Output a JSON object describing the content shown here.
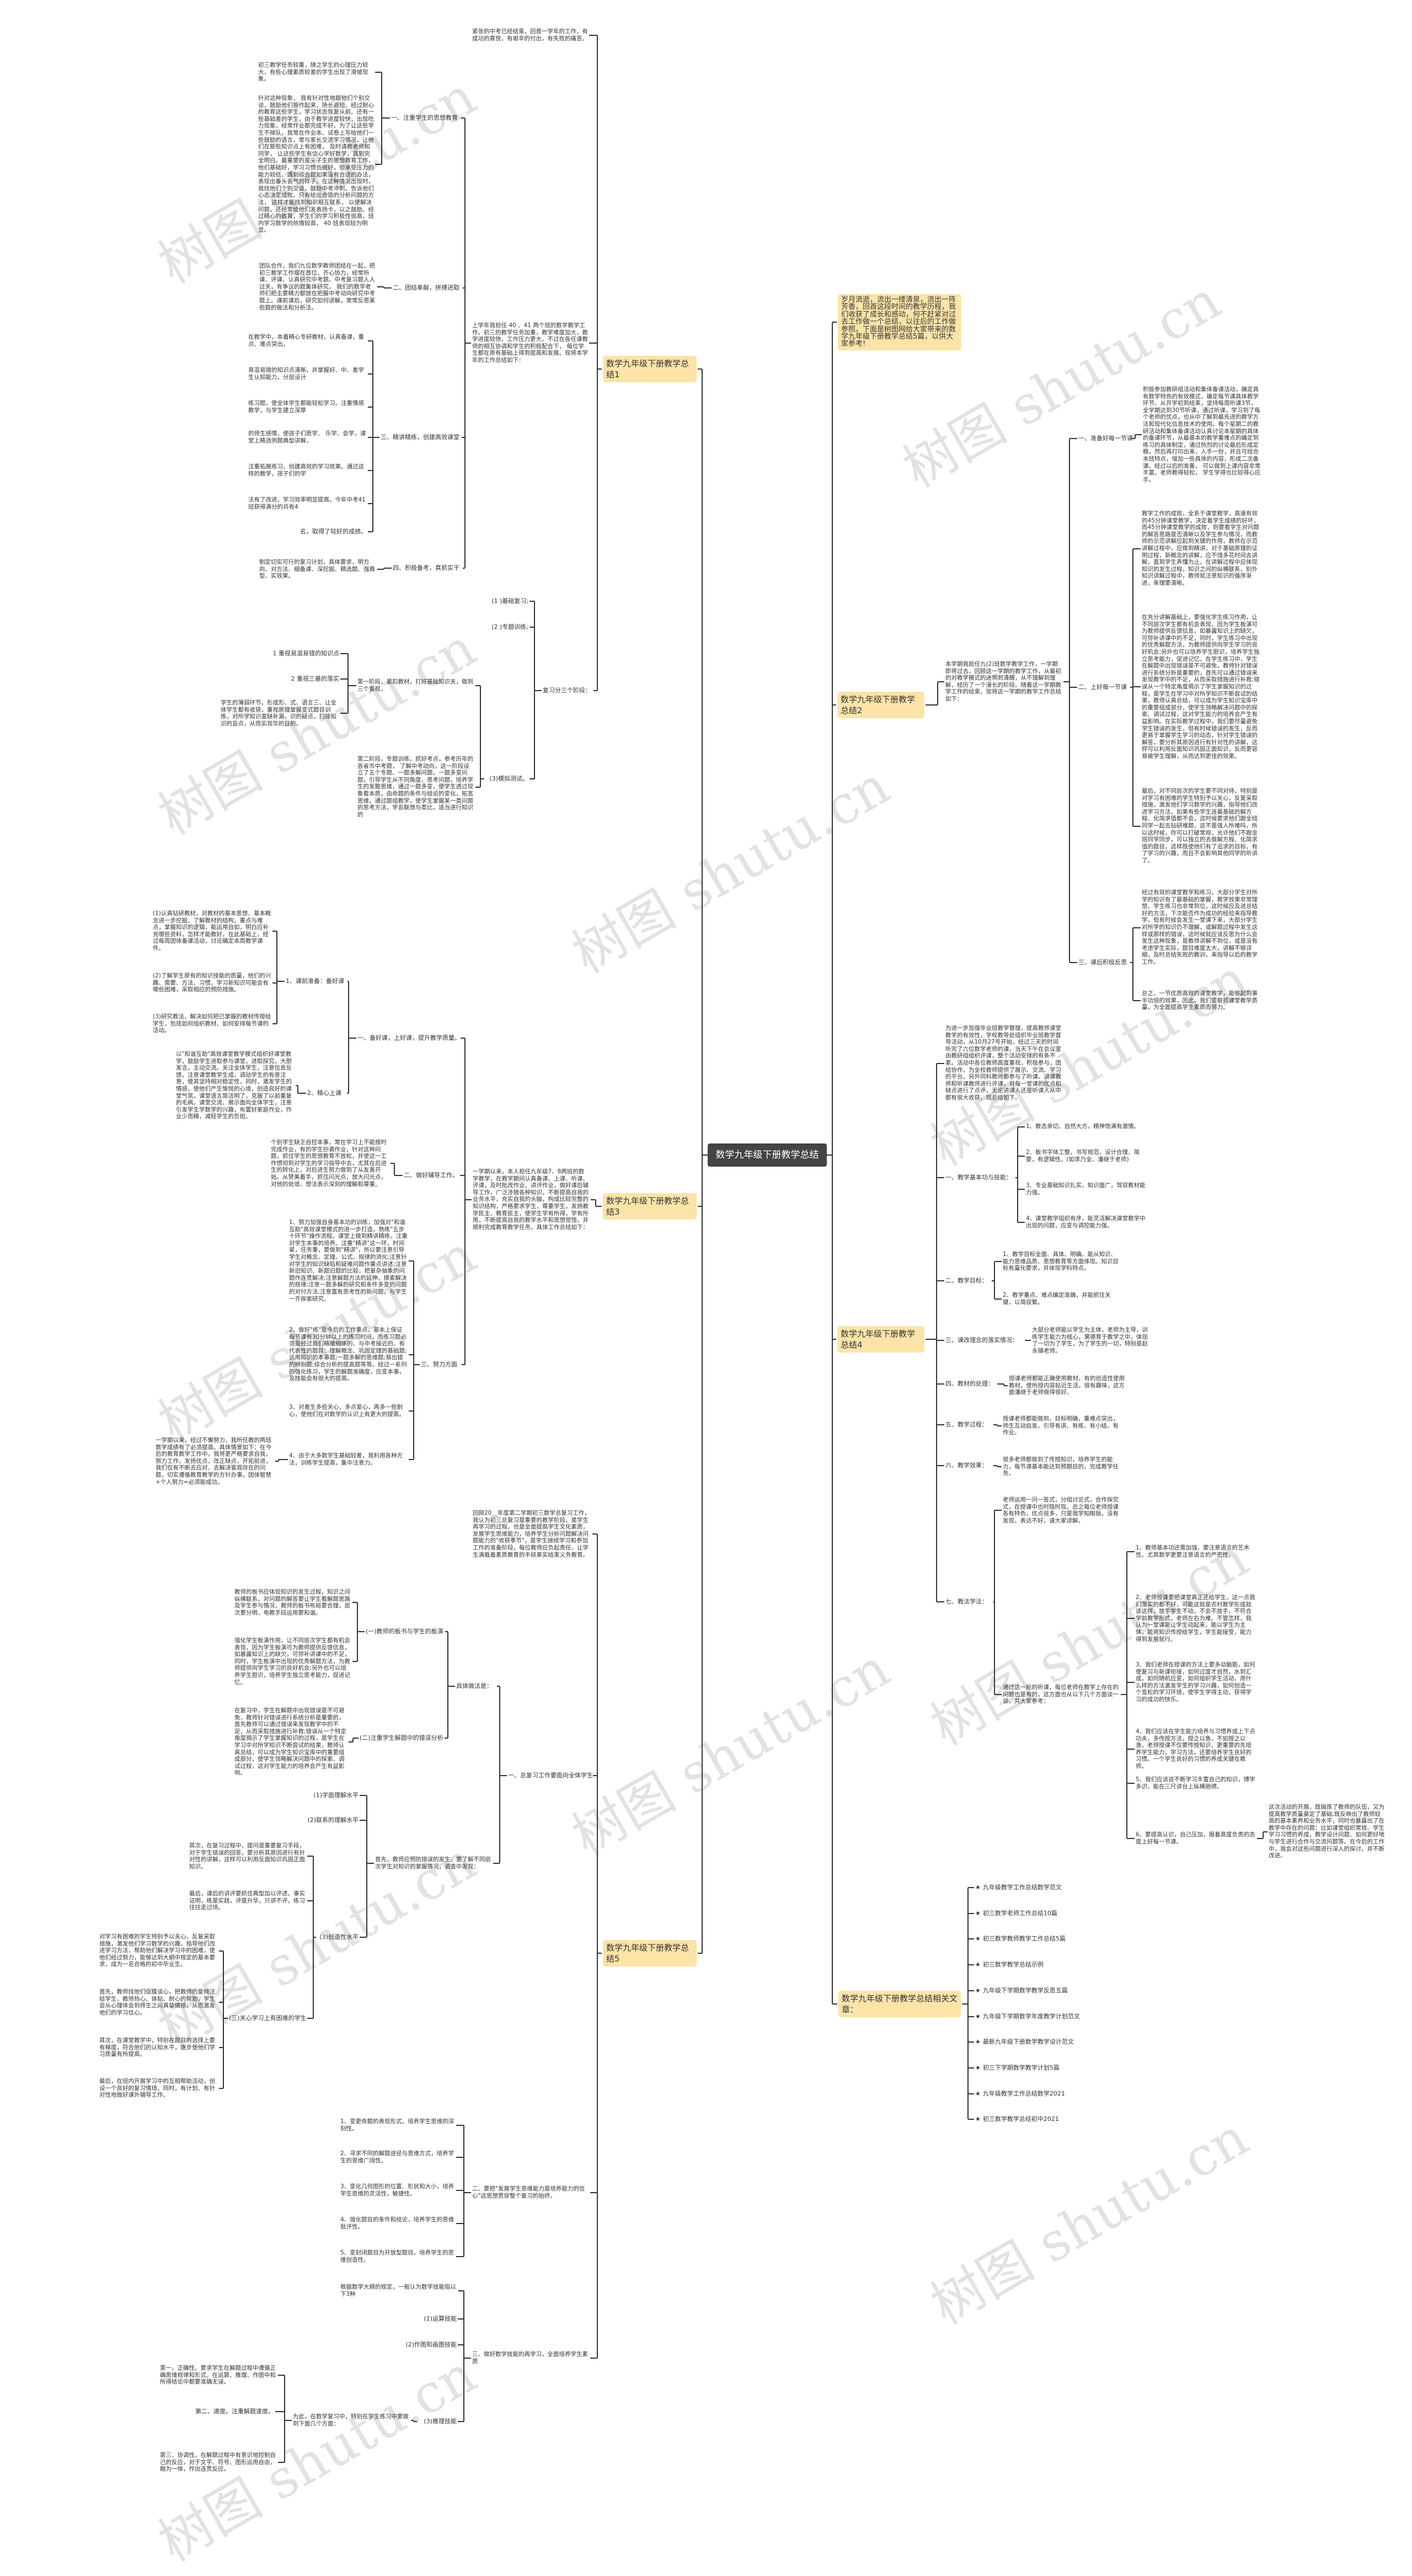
{
  "watermark": "树图 shutu.cn",
  "colors": {
    "node": "#fce4a8",
    "center": "#444444",
    "line": "#333333"
  },
  "center": "数学九年级下册教学总结",
  "intro": "岁月流逝，流出一缕清泉，流出一阵芳香，回首这段时间的教学历程，我们收获了成长和感动，何不赶紧对过去工作做一个总结，以往后的工作做参照。下面是树图网给大家带来的数学九年级下册教学总结5篇，以供大家参考!",
  "b1": {
    "title": "数学九年级下册教学总结1",
    "intro": "紧张的中考已经结束，回首一学年的工作，有成功的喜悦，有艰辛的付出，有失败的痛苦。",
    "p1": {
      "text": "上学年我担任 40 、41 两个班的数学教学工作。初三的教学任务加重，教学难度加大，教学进度较快，工作压力更大，不过在各任课教师的相互协调和学生的积极配合下， 每位学生都在原有基础上得到提高和发展。现将本学年的工作总结如下：",
      "s1": {
        "label": "一、注重学生的思想教育",
        "items": [
          "初三教学任务较重，随之学生的心理压力较大，有些心理素质较差的学生出现了滑坡现象。",
          "针对这种现象， 我有针对性地跟他们个别交谈，鼓励他们振作起来，扬长避短。经过耐心的教育这些学生，学习状态恢复从前。还有一些基础差的学生，由于教学进度较快，出现吃力现象，经常作业都完成不好。为了让这些学生不掉队，我常在作业本、试卷上写给他们一些鼓励的语言，常与家长交流学习情况，让他们在那些知识点上有困难， 及时请教老师和同学， 让这些学生有信心学好数学，直到完全明白。最重要的是尖子生的思想教育工作，他们基础好，学习习惯也很好，但承受压力的能力较低，遇到综合题如果没有合适的办法，表现出垂头丧气的样子。在这种情况出现时，我找他们个别交谈，鼓励中考冲刺，告诉他们心态决定成败。只有给出合适的分析问题的方法， 这样才能找到知识相互联系， 以便解决问题，还经常给他们发表扬卡，以之鼓励。经过精心的教育，学生们的学习积极性很高，班内学习数学的热情较高， 40 班表现较为明显。"
        ]
      },
      "s2": {
        "label": "二、团结奉献，拼搏进取",
        "items": [
          "团队合作，我们九位数学教师团结在一起，把初三教学工作摆在首位，齐心协力，经常听课、评课、认真研究中考题。中考复习题人人过关，有争议的题集体研究， 我们的数学老师们把主要精力都放在把握中考动向研究中考题上。课前课后，研究如何讲解，常常反思某些题的做法和分析法。"
        ]
      },
      "s3": {
        "label": "三、精讲精练，创建高效课堂",
        "items": [
          "在教学中，本着精心专研教材，认真备课，重点、难点突出，",
          "易混易错的知识点清晰，并掌握好、中、差学生认知能力，分层设计",
          "练习题，使全体学生都能轻松学习。注重情感教学，与学生建立深厚",
          "的师生感情，使孩子们愿学、 乐学、会学，课堂上精选例题典型讲解，",
          "注重拓展练习，创建高效的学习效果。通过这样的教学，孩子们的学",
          "法有了改进，学习效率明显提高，今年中考41 班获得满分的共有4",
          "名，取得了较好的成绩。"
        ]
      },
      "s4": {
        "label": "四、积极备考，真抓实干",
        "items": [
          "制定切实可行的复习计划，具体要求，明方向、对方法、细备课、深挖掘、精选题、强典型、实效果。"
        ]
      }
    },
    "review": {
      "label": "复习分三个阶段：",
      "items": [
        "(1 )基础复习;",
        "(2 )专题训练;"
      ],
      "s3": {
        "label": "(3)模拟测试。",
        "stage1": {
          "text": "第一阶段，紧扣教材，打好基础知识关，做到三个重视，",
          "items": [
            "1 重视易混易错的知识点",
            "2 重视三基的落实",
            "学生的薄弱环节，形成形、式、语言三、让全体学生都有收获，重视原理掌握变式题目训练，对所学知识查缺补漏，识的疑点，扫除知识的盲点，从而实现华的目的。"
          ]
        },
        "stage2": "第二阶段，专题训练，抓好考点，参考历年的各省市中考题， 了解中考动向，这一阶段设立了五个专题。一题多解问题，一题多变问题，引导学生从不同角度，思考问题，培养学生的发散思维，通过一题多变，使学生透过现象看本质，由命题的条件与结论的变化，拓宽思维，通过题组教学，使学生掌握某一类问题的思考方法，学会联想与类比，适当进行知识的"
      }
    }
  },
  "b2": {
    "title": "数学九年级下册教学总结2",
    "intro": "本学期我担任九(2)班数学教学工作，一学期即将过去，回顾这一学期的教学工作，从最初的对教学模式的迷惘到清醒，从不理解到理解，经历了一个漫长的阶段。随着这一学期教学工作的结束，现将这一学期的教学工作总结如下：",
    "s1": {
      "label": "一、准备好每一节课",
      "items": [
        "积极参加教研组活动和集体备课活动，确定具有数学特色的有效模式，确定每节课具体教学环节。从开学初到结束，坚持每周听课3节，全学期达到30节听课，通过听课，学习到了每个老师的优点，也从中了解到最先进的教学方法和现代化信息技术的使用。每个星期二的教研活动和集体备课活动认真讨论本星期的具体的备课环节，从最基本的教学重难点的确定到练习的具体制定，通过热烈的讨论最后形成定稿，然后再打印出来，人手一份，并且可结合本班特点，增加一些具体的内容，形成二次备课。经过以后的准备， 可以做到上课内容非常丰富，老师教得轻松， 学生学得也比较得心应手。"
      ]
    },
    "s2": {
      "label": "二、上好每一节课",
      "items": [
        "教学工作的成败，全系于课堂教学，高速有效的45分钟课堂教学，决定着学生成绩的好坏，而45分钟课堂教学的成败，则要看学生对问题的解答思路是否清晰以及学生参与情况，而教师的示范讲解应起到关键的作用，教师在示范讲解过程中，应做到精讲，对于基础原理的证明过程，新概念的讲解，应不惜多花时间去讲解，直到学生弄懂为止，在讲解过程中应体现知识的发生过程，知识之间的纵横联系，别外知识讲解过程中，教师就注意知识的循序渐进，条理要清晰。",
        "在充分讲解基础上，要强化学生练习作用，让不同层次学生都有机会表现，因为学生板演可为教师提供反馈信息，如暴露知识上的缺欠，可弥补讲课中的不足，同时，学生练习中出现的优秀解题方法，为教师提供向学生学习的良好机会;另外也可以培养学生胆识，培养学生独立思考能力，促进记忆。在学生练习中，学生在解题中出现错误是不可避免。教师针对错误进行系统分析是重要的，首先可以通过错误来发现教学中的不足，从而采取措施进行补救;错误从一个特定角度揭示了学生掌握知识的过程，是学生在学习中对所学知识不断尝试的结果，教师认真总结，可以成为学生知识宝库中的重要组成部分，使学生领略解决问题中的探索、调试过程，这对学生能力的培养会产生有益影响。在实际教学过程中，我们要尽量避免学生错误的发生，但有时候错误的发生，反而更易于掌握学生学习的动态，针对学生错误的解答，要分析其原因进行有针对性的讲解，这样可以利用反面知识巩固正面知识，反而更容易被学生理解，从而达到更佳的效果。",
        "最后，对不同层次的学生要不同对待，特别是对学习有困难的学生特别予以关心，反复采取措施，激发他们学习数学的兴趣，指导他们改进学习方法，如果有些学生连最基础的解方程、化简求值都不会，这时候要求他们跟全班同学一起去钻研难题，这不是强人所难吗，所以这时候，你可以打破常规，允许他们不跟全班同学同步，可以独立的去做解方程、化简求值的题目，这样既使他们有了追求的目标，有了学习的兴趣，而且不会影响其他同学的听讲了。"
      ]
    },
    "s3": {
      "label": "三、课后积极反思",
      "items": [
        "经过有效的课堂教学和练习，大部分学生对所学的知识有了最基础的掌握，教学效果非常理想，学生练习也非常到位，这时候应及进总结好的方法，下次能否作为成功的经验来指导教学。但有时候会发生一堂课下来，大部分学生对所学的知识仍不理解，或解题过程中发生这样或那样的错误，这时候就应该反思为什么会发生这种现象，是教师讲解不到位，或是没有考虑学生实际，题目难度太大，讲解不够详细，及时总结失败的教训，来指导以后的教学工作。",
        "总之，一节优质高效的课堂教学，能够起到事半功倍的效果，因此，我们要狠抓课堂教学质量，为全面提高学生素质而努力。"
      ]
    }
  },
  "b3": {
    "title": "数学九年级下册教学总结3",
    "intro": "一学期以来，本人担任九年级7、8两班的数学教学，在教学期间认真备课、上课、听课、评课，及时批改作业、讲评作业，做好课后辅导工作，广泛涉猎各种知识，不断提高自我的业务水平，充实自我的头脑，构成比较完整的知识结构，严格要求学生，尊重学生，发扬教学民主，教育民主，使学生学有所得，学有所用，不断提高自我的教学水平和思想觉悟，并顺利完成教育教学任务。具体工作总结如下：",
    "s1": {
      "label": "一、备好课，上好课，提升教学质量。",
      "c1": {
        "label": "1、课前准备：备好课",
        "items": [
          "(1)认真钻研教材，对教材的基本思想、基本概念进一步挖掘，了解教材的结构，重点与难点，掌握知识的逻辑，能运用自如，明白应补充哪些资料，怎样才能教好，在此基础上，经过每周团体备课活动，讨论确定本周教学课件。",
          "(2)了解学生原有的知识技能的质量，他们的兴趣、需要、方法、习惯，学习新知识可能会有哪些困难，采取相应的预防措施。",
          "(3)研究教法，解决如何把已掌握的教材传授给学生，包括如何组织教材、如何安排每节课的活动。"
        ]
      },
      "c2": {
        "label": "2、精心上课",
        "items": [
          "以\"和谐互助\"高效课堂教学模式组织好课堂教学，鼓励学生进取参与课堂，进取探究，大胆发言，主动交流。关注全体学生，注意信息反馈，注意课堂教学生成，调动学生的有意注意，使其坚持相对稳定性，同时，激发学生的情感，使他们产生愉悦的心境，创造良好的课堂气氛，课堂语言简洁明了，克服了以前重复的毛病，课堂交流、展示面向全体学生，注意引发学生学数学的兴趣，布置好家庭作业，作业少而精，减轻学生的负担。"
        ]
      }
    },
    "s2": {
      "label": "二、做好辅导工作。",
      "items": [
        "个别学生缺乏自控本事，常在学习上不能按时完成作业，有的学生抄袭作业，针对这种问题，抓住学生的思想教育不放松，并使这一工作惯彻到对学生的学习指导中去，尤其在后进生的转化上，对后进生努力做到了从友善开始。从赞美着手，抓住闪光点，放大闪光点，对他的处境、想法表示深刻的理解和尊重。"
      ]
    },
    "s3": {
      "label": "三、努力方面",
      "items": [
        "1、努力加强自身基本功的训练，加强对\"和谐互助\"高效课堂模式的进一步打造，熟练\"五步十环节\"操作流程。课堂上做到精讲精练，注重对学生本事的培养。注重\"精讲\"这一环，时间紧，任务重，要做到\"精讲\"，所以要注意引导学生对概念、定理、公式、规律的消化;注意针对学生的知识缺陷和疑难问题作重点讲述;注意新旧知识、新题旧题的比较，把复杂抽象的问题作连贯解决;注意解题方法的延伸，摸索解决的规律;注意一题多解的研究和条件多变的问题的对付方法;注意富有思考性的新问题，与学生一齐探索研究。",
        "2、做好\"练\"是今后的工作重点，基本上保证每节课有30分钟以上的练习时间，而练习题必须是经过我们精雕细琢的、与中考接近的、有代表性的题目：理解概念、巩固定理的基础题;运用知识的本事题;一题多解的思维题;易出错的辨别题;综合分析的提高题等等。经过一系列的强化练习，学生的解题准确度，应变本事，及技能会有很大的提高。",
        "3、对差生多些关心，多点爱心，再多一些耐心，使他们在对数学的认识上有更大的提高。",
        "4、由于大多数学生基础较差，我利用各种方法，训练学生提高，集中注意力。"
      ],
      "final": "一学期以来，经过不懈努力，我所任教的两班数学成绩有了必须提高。具体情景如下：在今后的教育教学工作中，我将更严格要求自我，努力工作，发扬优点，改正缺点，开拓前进，我们仅有不断去应对、去解决客观存在的问题，切实遵循教育教学的方针办事，团体智慧+个人努力=必须能成功。"
    }
  },
  "b4": {
    "title": "数学九年级下册教学总结4",
    "intro": "为进一步加强毕业班教学管理，提高教师课堂教学的有效性，学校教导处组织毕业班教学督导活动，从10月27号开始，经过三天的时间听完了六位数学老师的课，当天下午在会议室由教研组组织评课，整个活动安排的有条不紊。活动中各位教师高度重视，积极参与，团结协作，为全校教师提供了展示、交流、学习的平台。另外同科教师都参与了听课。讲课教师和听课教师进行评课，对每一堂课的优点和缺点进行了点评，无论讲课人还是听课人从中都有很大收获，现总结如下。",
    "s1": {
      "label": "一、教学基本功与技能：",
      "items": [
        "1、教态亲切、自然大方，精神饱满有激情。",
        "2、板书字体工整，书写规范，设计合理、简要，有逻辑性。(如李乃全、潘继于老师)",
        "3、专业基础知识扎实，知识面广，驾驭教材能力强。",
        "4、课堂教学组织有序，能灵活解决课堂教学中出现的问题，应变与调控能力强。"
      ]
    },
    "s2": {
      "label": "二、教学目标：",
      "items": [
        "1、教学目标全面、具体、明确。能从知识、能力思维品质、思想教育等方面体现。知识目标有量化要求，并体现学科特点。",
        "2、教学重点、难点确定准确，并能抓住关键，以简驭繁。"
      ]
    },
    "s3": {
      "label": "三、课改理念的落实情况：",
      "text": "大部分老师能以学生为主体，老师为主导，训练学生能力为核心，寓德育于教学之中，体现了一切为了学生，为了学生的一切，特别是赵永镇老师。"
    },
    "s4": {
      "label": "四、教材的处理：",
      "text": "授课老师都能正确使用教材，有的创造性使用教材，使所授内容贴近生活，很有趣味，这方面潘继于老师做得很好。"
    },
    "s5": {
      "label": "五、教学过程：",
      "text": "授课老师都能做到，目标明确，重难点突出，师生互动启发，引导有讲、有练、有小结、有作业。"
    },
    "s6": {
      "label": "六、教学效果：",
      "text": "很多老师都做到了传授知识，培养学生的能力，每节课基本能达到预期目的，完成教学任务。"
    },
    "s7": {
      "label": "七、教法学法：",
      "text1": "老师运用一问一答式，分组讨论式，合作探究式，在授课中也时隐时现。总之每位老师授课各有特色，优点很多，只是我学知眼拙，没有发现，表达不好，请大家谅解。",
      "text2": "通过这一轮的听课，每位老师在教学上存在的问题也是有的，这方面也从以下几个方面谈一谈，共大家参考：",
      "items": [
        "1、教师基本功还需加强，要注意语言的艺术性。尤其数学更要注意语言的严密性。",
        "2、老师授课要把课堂真正还给学生，这一点我们落实的都不好，可能这就是农村教学形成就该这样，放手学生不动，不会不放手，不符合学前教学形式，老师左右为难。不管怎样，我认为一堂课能让学生动起来，能以学生为主体，能将知识传授给学生，学生能接受，能力得到发展就行。",
        "3、我们老师在授课的方法上要多动脑筋，如何使复习与新课衔接，如何过度才自然，水到汇成，如何随机应变，如何组织学生活动，用什么样的方法激发学生的学习兴趣，如何创造一个宽松的学习环境，使学生学得主动，获得学习的成功的快乐。",
        "4、我们应该在学生能力培养与习惯养成上下点功夫，多传授方法，授之以鱼，不如授之以渔，老师授课不仅要传授知识，更重要的先培养学生能力，学习方法，还要培养学生良好的习惯。一个学生良好的习惯的养成关键在教师。",
        "5、我们应该说不断学习丰富自己的知识，博学多识，能在三尺讲台上纵横驰骋。",
        "6、要提高认识，自己压加，报着高度负责的态度上好每一节课。"
      ],
      "final": "这次活动的开展，既锻炼了教师的队伍，又为提高教学质量奠定了基础;既反映出了教师较高的基本素养和业务水平，同时也暴露出了在教学中存在的问题：比如课堂组织常规、学生学习习惯的养成，教学设计问题、如何更好地与学生进行合作与交流问题等。在今后的工作中，我会对这些问题进行深入的探讨，并不断改进。"
    }
  },
  "b5": {
    "title": "数学九年级下册教学总结5",
    "intro": "回顾20__年度第二学期初三数学总复习工作，我认为初三总复习是重要的教学阶段，是学生再学习的过程，也是全面提高学生文化素质，发展学生思维能力，培养学生分析问题解决问题能力的\"收获季节\"，是学生继续学习和参加工作的准备阶段，每位教师应负起责任，让学生满载着素质教育的丰硕果实结束义务教育。",
    "s1": {
      "label": "一、总复习工作要面向全体学生",
      "how": {
        "label": "具体做法是：",
        "a": {
          "label": "(一)教师的板书与学生的板演",
          "items": [
            "教师的板书应体现知识的发生过程，知识之间纵横联系，对问题的解答要让学生看解题思路及学生参与情况，教师的板书布局要合理，层次要分明，电教手段运用要和谐。",
            "强化学生板演作用，让不同层次学生都有机会表现，因为学生板演可为教师提供反馈信息，如暴露知识上的缺欠，可弥补讲课中的不足，同时，学生板演中出现的优秀解题方法，为教师提供向学生学习的良好机会;另外也可以培养学生胆识，培养学生独立思考能力，促进记忆。"
          ]
        },
        "b": {
          "label": "(二)注重学生解题中的错误分析",
          "text": "在复习中，学生在解题中出现错误是不可避免，教师针对错误进行系统分析是重要的，首先教师可以通过错误来发现教学中的不足，从而采取措施进行补救;错误从一个特定角度揭示了学生掌握知识的过程，是学生在学习中对所学知识不断尝试的结果，教师认真总结，可以成为学生知识宝库中的重要组成部分，使学生领略解决问题中的探索、调试过程，这对学生能力的培养会产生有益影响。"
        }
      },
      "first": {
        "text": "首先，教师应预防错误的发生，要了解不同层次学生对知识的掌握情况，调查中发现：",
        "items": [
          "(1)字面理解水平",
          "(2)联系的理解水平"
        ],
        "c3": {
          "label": "(3)创造性水平",
          "items": [
            "其次，在复习过程中，提问是重要复习手段，对于学生错误的回答，要分析其原因进行有针对性的讲解，这样可以利用反面知识巩固正面知识。",
            "最后，课后的讲评要抓住典型加以评述。事实证明，练是实践，评是升华，只讲不评，练习往往走过场。"
          ],
          "care": {
            "label": "(三)关心学习上有困难的学生",
            "items": [
              "对学习有困难的学生特别予以关心，反复采取措施，激发他们学习数学的兴趣，指导他们改进学习方法，帮助他们解决学习中的困难，使他们经过努力，能够达到大纲中规定的基本要求，成为一名合格的初中毕业生。",
              "首先，教师找他们促膝谈心，把教师的爱倾注给学生，教师热心、体贴、耐心的帮助，学生会从心理体会到师生之间真挚情感，从而激发他们的学习信心。",
              "其次，在课堂教学中，特别在题目的选择上要有梯度，符合他们的认知水平，逐步使他们学习质量有所提高。",
              "最后，在班内开展学习中的互相帮助活动，创设一个良好的复习情境，同时，有计划、有针对性地做好课外辅导工作。"
            ]
          }
        }
      }
    },
    "s2": {
      "label": "二、要把\"发展学生思维能力是培养能力的信心\"这思想贯穿整个复习的始终。",
      "items": [
        "1、变更命题的表现形式，培养学生思维的深刻性。",
        "2、寻求不同的解题途径与思维方式，培养学生的思维广阔性。",
        "3、变化几何图形的位置、形状和大小，培养学生思维的灵活性，敏捷性。",
        "4、强化题目的条件和结论，培养学生的思维批评性。",
        "5、变封闭题目为开放型题目，培养学生的思维创造性。"
      ]
    },
    "s3": {
      "label": "三、做好数学技能的再学习，全面培养学生素质",
      "intro": "根据数学大纲的规定，一般认为数学技能指以下3种",
      "items": [
        "(1)运算技能",
        "(2)作图和画图技能"
      ],
      "c3": {
        "label": "(3)推理技能",
        "text": "为此，在数学复习中，特别在学生练习中要做到下面几个方面：",
        "items": [
          "第一，正确性。要求学生在解题过程中遵循正确思维规律和形式，在运算、推理、作图中和所得结论中都要准确无误。",
          "第二、速度。注重解题速度。",
          "第三、协调性。在解题过程中有意识地控制自己的反应，对于文字、符号、图形运用自由，融为一体，作出连贯反应。"
        ]
      }
    }
  },
  "b6": {
    "title": "数学九年级下册教学总结相关文章：",
    "star": "★",
    "items": [
      "九年级教学工作总结数学范文",
      "初三数学老师工作总结10篇",
      "初三数学教师教学工作总结5篇",
      "初三数学教学总结示例",
      "九年级下学期数学教学反思五篇",
      "九年级下学期数学年度教学计划范文",
      "最新九年级下册数学教学设计范文",
      "初三下学期数学教学计划5篇",
      "九年级教学工作总结数学2021",
      "初三数学教学总结初中2021"
    ]
  }
}
